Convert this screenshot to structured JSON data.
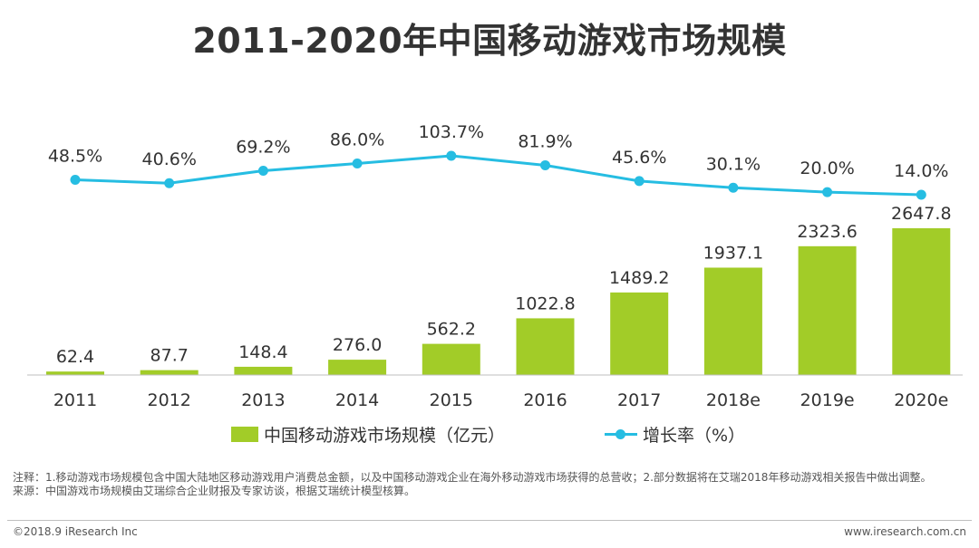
{
  "title": "2011-2020年中国移动游戏市场规模",
  "chart_data": {
    "type": "bar+line",
    "title": "2011-2020年中国移动游戏市场规模",
    "categories": [
      "2011",
      "2012",
      "2013",
      "2014",
      "2015",
      "2016",
      "2017",
      "2018e",
      "2019e",
      "2020e"
    ],
    "series": [
      {
        "name": "中国移动游戏市场规模（亿元）",
        "type": "bar",
        "values": [
          62.4,
          87.7,
          148.4,
          276.0,
          562.2,
          1022.8,
          1489.2,
          1937.1,
          2323.6,
          2647.8
        ],
        "labels": [
          "62.4",
          "87.7",
          "148.4",
          "276.0",
          "562.2",
          "1022.8",
          "1489.2",
          "1937.1",
          "2323.6",
          "2647.8"
        ],
        "color": "#a2cc28"
      },
      {
        "name": "增长率（%）",
        "type": "line",
        "values": [
          48.5,
          40.6,
          69.2,
          86.0,
          103.7,
          81.9,
          45.6,
          30.1,
          20.0,
          14.0
        ],
        "labels": [
          "48.5%",
          "40.6%",
          "69.2%",
          "86.0%",
          "103.7%",
          "81.9%",
          "45.6%",
          "30.1%",
          "20.0%",
          "14.0%"
        ],
        "color": "#26bde2"
      }
    ],
    "xlabel": "",
    "ylabel": "",
    "grid": false,
    "legend_position": "bottom"
  },
  "legend": {
    "bar_label": "中国移动游戏市场规模（亿元）",
    "line_label": "增长率（%）"
  },
  "notes": {
    "note": "注释：1.移动游戏市场规模包含中国大陆地区移动游戏用户消费总金额，以及中国移动游戏企业在海外移动游戏市场获得的总营收；2.部分数据将在艾瑞2018年移动游戏相关报告中做出调整。",
    "source": "来源：中国游戏市场规模由艾瑞综合企业财报及专家访谈，根据艾瑞统计模型核算。"
  },
  "footer": {
    "copyright": "©2018.9 iResearch Inc",
    "website": "www.iresearch.com.cn"
  }
}
